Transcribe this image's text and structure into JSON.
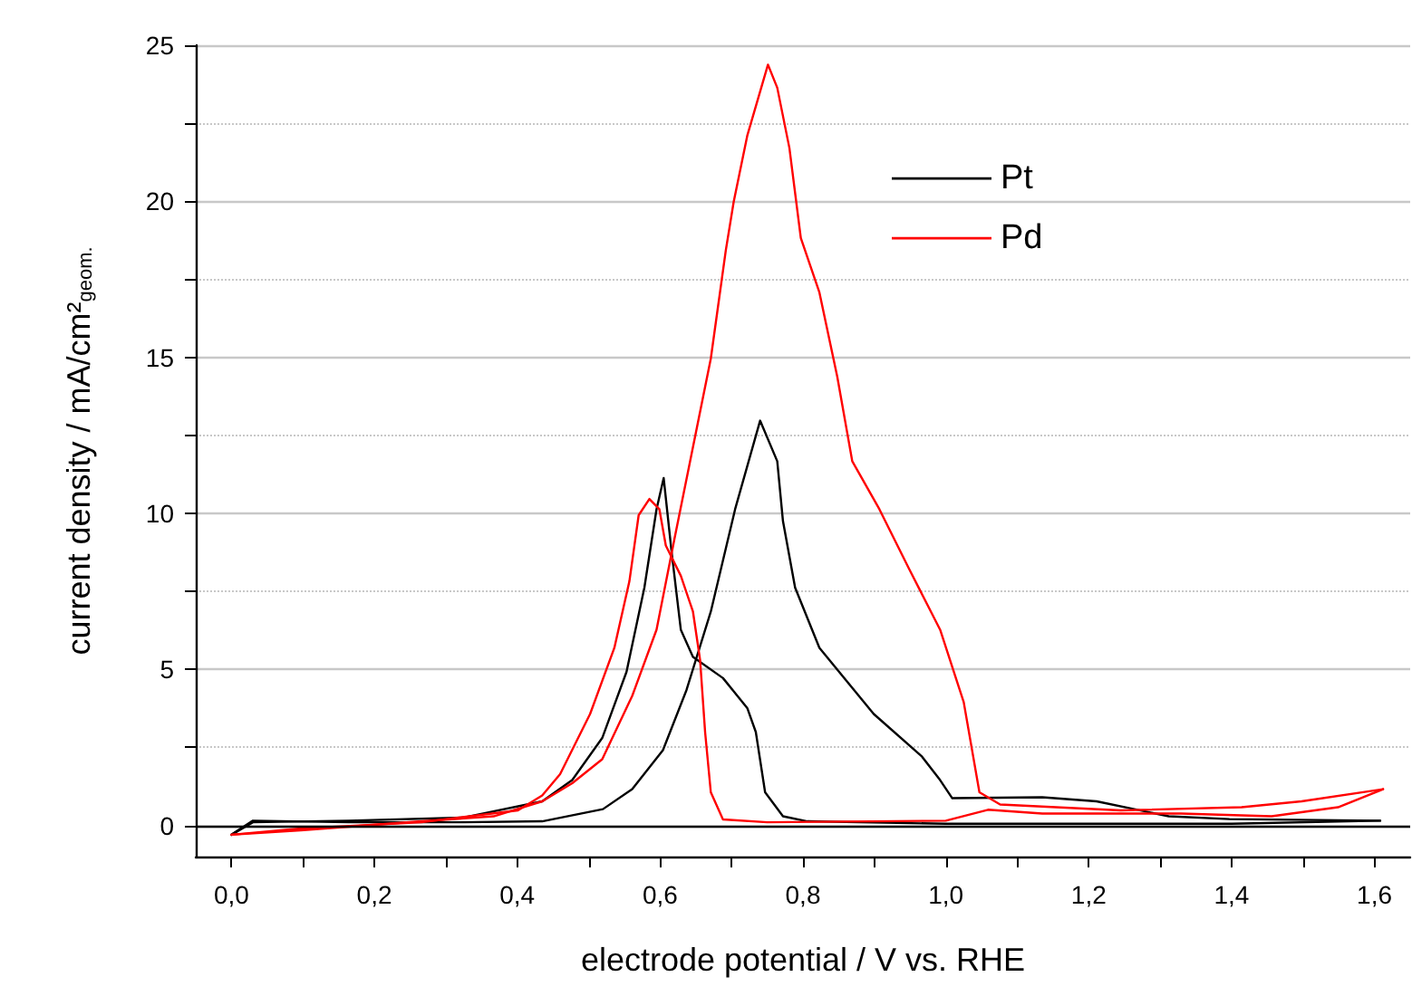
{
  "chart_data": {
    "type": "line",
    "xlabel": "electrode potential / V vs. RHE",
    "ylabel": "current density / mA/cm²$_{geom.}$",
    "xlim": [
      -0.05,
      1.65
    ],
    "ylim": [
      -1,
      25
    ],
    "xticks": [
      {
        "value": 0,
        "label": "0,0"
      },
      {
        "value": 0.1,
        "label": null
      },
      {
        "value": 0.2,
        "label": "0,2"
      },
      {
        "value": 0.3,
        "label": null
      },
      {
        "value": 0.4,
        "label": "0,4"
      },
      {
        "value": 0.5,
        "label": null
      },
      {
        "value": 0.6,
        "label": "0,6"
      },
      {
        "value": 0.7,
        "label": null
      },
      {
        "value": 0.8,
        "label": "0,8"
      },
      {
        "value": 0.9,
        "label": null
      },
      {
        "value": 1.0,
        "label": "1,0"
      },
      {
        "value": 1.1,
        "label": null
      },
      {
        "value": 1.2,
        "label": "1,2"
      },
      {
        "value": 1.3,
        "label": null
      },
      {
        "value": 1.4,
        "label": "1,4"
      },
      {
        "value": 1.5,
        "label": null
      },
      {
        "value": 1.6,
        "label": "1,6"
      }
    ],
    "yticks": [
      0,
      {
        "value": 2.5,
        "label": null
      },
      5,
      {
        "value": 7.5,
        "label": null
      },
      10,
      {
        "value": 12.5,
        "label": null
      },
      15,
      {
        "value": 17.5,
        "label": null
      },
      20,
      {
        "value": 22.5,
        "label": null
      },
      25
    ],
    "grid": "y",
    "legend": "top right",
    "marker": "none",
    "line_style": "solid",
    "ref_lines": [
      {
        "axis": "y",
        "value": 0,
        "color": "#000000"
      }
    ],
    "series": [
      {
        "name": "Pt",
        "color": "#000000",
        "x": [
          0.0,
          0.03,
          0.164,
          0.325,
          0.435,
          0.52,
          0.561,
          0.604,
          0.637,
          0.671,
          0.705,
          0.74,
          0.764,
          0.772,
          0.789,
          0.823,
          0.899,
          0.966,
          0.992,
          1.009,
          1.135,
          1.211,
          1.312,
          1.397,
          1.608
        ],
        "values": [
          -0.3,
          0.15,
          0.1,
          0.1,
          0.13,
          0.52,
          1.16,
          2.41,
          4.34,
          6.85,
          10.13,
          12.97,
          11.67,
          9.75,
          7.62,
          5.69,
          3.57,
          2.22,
          1.45,
          0.87,
          0.9,
          0.77,
          0.29,
          0.2,
          0.15
        ]
      },
      {
        "color": "#000000",
        "x": [
          0.0,
          0.03,
          0.164,
          0.325,
          0.435,
          0.477,
          0.519,
          0.553,
          0.578,
          0.595,
          0.605,
          0.616,
          0.629,
          0.646,
          0.688,
          0.722,
          0.734,
          0.747,
          0.772,
          0.806,
          1.0,
          1.4,
          1.608
        ],
        "values": [
          -0.3,
          0.1,
          0.15,
          0.25,
          0.77,
          1.45,
          2.8,
          4.92,
          7.62,
          10.13,
          11.13,
          8.78,
          6.27,
          5.4,
          4.72,
          3.76,
          2.99,
          1.06,
          0.29,
          0.13,
          0.05,
          0.05,
          0.15
        ]
      },
      {
        "name": "Pd",
        "color": "#ff0000",
        "x": [
          0.0,
          0.097,
          0.266,
          0.367,
          0.435,
          0.477,
          0.519,
          0.561,
          0.595,
          0.62,
          0.654,
          0.671,
          0.692,
          0.703,
          0.722,
          0.751,
          0.764,
          0.781,
          0.797,
          0.823,
          0.848,
          0.869,
          0.907,
          0.949,
          0.992,
          1.025,
          1.047,
          1.076,
          1.245,
          1.414,
          1.498,
          1.612
        ],
        "values": [
          -0.3,
          -0.16,
          0.13,
          0.29,
          0.77,
          1.35,
          2.12,
          4.15,
          6.27,
          9.17,
          13.03,
          14.96,
          18.43,
          19.98,
          22.1,
          24.38,
          23.64,
          21.71,
          18.82,
          17.08,
          14.38,
          11.67,
          10.13,
          8.2,
          6.27,
          3.95,
          1.06,
          0.67,
          0.48,
          0.58,
          0.77,
          1.16
        ]
      },
      {
        "color": "#ff0000",
        "x": [
          0.0,
          0.097,
          0.266,
          0.401,
          0.435,
          0.46,
          0.502,
          0.536,
          0.557,
          0.57,
          0.585,
          0.599,
          0.608,
          0.629,
          0.646,
          0.656,
          0.663,
          0.671,
          0.688,
          0.75,
          1.0,
          1.059,
          1.135,
          1.329,
          1.456,
          1.549,
          1.612
        ],
        "values": [
          -0.3,
          -0.1,
          0.1,
          0.48,
          0.96,
          1.64,
          3.57,
          5.69,
          7.82,
          9.94,
          10.46,
          10.13,
          8.97,
          8.0,
          6.85,
          5.3,
          2.99,
          1.06,
          0.19,
          0.1,
          0.15,
          0.5,
          0.38,
          0.38,
          0.29,
          0.58,
          1.16
        ]
      }
    ]
  }
}
